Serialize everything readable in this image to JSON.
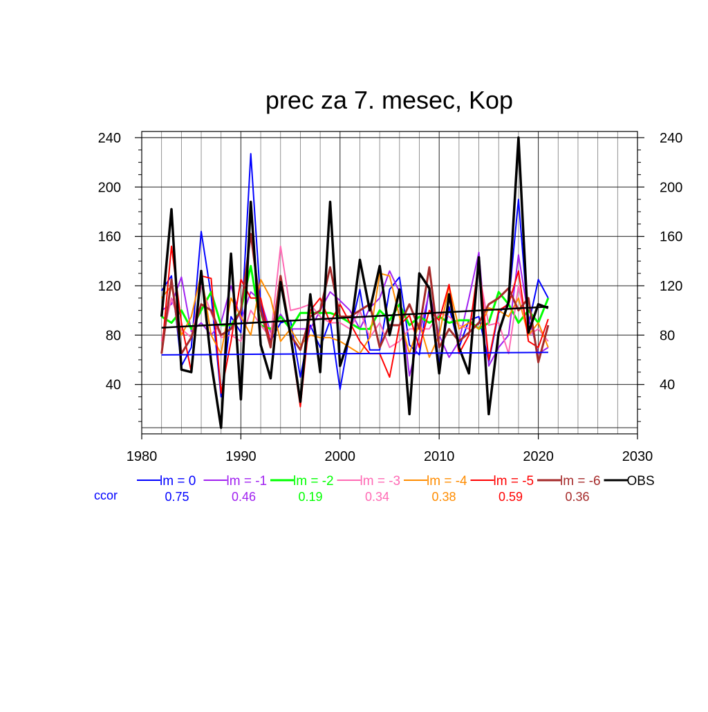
{
  "chart_data": {
    "type": "line",
    "title": "prec za 7. mesec, Kop",
    "xlabel": "",
    "ylabel": "",
    "xlim": [
      1980,
      2030
    ],
    "ylim": [
      0,
      245
    ],
    "x_ticks": [
      "1980",
      "1990",
      "2000",
      "2010",
      "2020",
      "2030"
    ],
    "y_ticks": [
      "40",
      "80",
      "120",
      "160",
      "200",
      "240"
    ],
    "y_ticks_right": [
      "40",
      "80",
      "120",
      "160",
      "200",
      "240"
    ],
    "grid": true,
    "x": [
      1982,
      1983,
      1984,
      1985,
      1986,
      1987,
      1988,
      1989,
      1990,
      1991,
      1992,
      1993,
      1994,
      1995,
      1996,
      1997,
      1998,
      1999,
      2000,
      2001,
      2002,
      2003,
      2004,
      2005,
      2006,
      2007,
      2008,
      2009,
      2010,
      2011,
      2012,
      2013,
      2014,
      2015,
      2016,
      2017,
      2018,
      2019,
      2020,
      2021
    ],
    "ccor_label": "ccor",
    "series": [
      {
        "name": "lm = 0",
        "color": "#0000ff",
        "ccor": "0.75",
        "width": 2,
        "values": [
          116,
          128,
          55,
          70,
          164,
          112,
          30,
          95,
          82,
          227,
          105,
          75,
          90,
          92,
          46,
          88,
          70,
          92,
          36,
          82,
          117,
          68,
          68,
          117,
          127,
          72,
          64,
          118,
          56,
          103,
          70,
          92,
          95,
          58,
          98,
          106,
          190,
          88,
          125,
          110
        ],
        "trend": [
          64,
          66
        ]
      },
      {
        "name": "lm = -1",
        "color": "#a020f0",
        "ccor": "0.46",
        "width": 2,
        "values": [
          100,
          105,
          127,
          83,
          90,
          80,
          90,
          120,
          92,
          115,
          108,
          82,
          97,
          85,
          85,
          85,
          100,
          115,
          108,
          100,
          85,
          102,
          110,
          132,
          115,
          47,
          80,
          115,
          80,
          62,
          75,
          110,
          147,
          55,
          70,
          80,
          145,
          95,
          65,
          70
        ]
      },
      {
        "name": "lm = -2",
        "color": "#00ff00",
        "ccor": "0.19",
        "width": 3,
        "values": [
          95,
          90,
          100,
          85,
          100,
          115,
          88,
          88,
          100,
          136,
          88,
          85,
          95,
          85,
          98,
          98,
          98,
          98,
          95,
          90,
          85,
          85,
          100,
          92,
          105,
          88,
          95,
          90,
          95,
          90,
          92,
          92,
          85,
          90,
          115,
          105,
          90,
          100,
          90,
          110
        ]
      },
      {
        "name": "lm = -3",
        "color": "#ff69b4",
        "ccor": "0.34",
        "width": 2,
        "values": [
          75,
          110,
          85,
          78,
          120,
          98,
          78,
          80,
          75,
          100,
          88,
          78,
          152,
          100,
          102,
          105,
          95,
          90,
          90,
          85,
          100,
          78,
          90,
          70,
          75,
          85,
          85,
          85,
          98,
          95,
          88,
          85,
          132,
          88,
          90,
          65,
          120,
          80,
          85,
          75
        ]
      },
      {
        "name": "lm = -4",
        "color": "#ff8c00",
        "ccor": "0.38",
        "width": 2,
        "values": [
          110,
          120,
          80,
          95,
          130,
          80,
          65,
          110,
          95,
          80,
          125,
          110,
          75,
          85,
          72,
          80,
          78,
          78,
          75,
          70,
          65,
          78,
          130,
          128,
          95,
          65,
          90,
          62,
          80,
          120,
          85,
          90,
          85,
          102,
          100,
          95,
          110,
          80,
          90,
          70
        ]
      },
      {
        "name": "lm = -5",
        "color": "#ff0000",
        "ccor": "0.59",
        "width": 2,
        "values": [
          65,
          152,
          90,
          50,
          128,
          126,
          33,
          75,
          125,
          110,
          110,
          72,
          128,
          78,
          22,
          100,
          110,
          90,
          105,
          90,
          75,
          65,
          65,
          46,
          88,
          96,
          70,
          100,
          92,
          121,
          65,
          80,
          140,
          60,
          100,
          105,
          132,
          75,
          70,
          93
        ]
      },
      {
        "name": "lm = -6",
        "color": "#a52a2a",
        "ccor": "0.36",
        "width": 3,
        "values": [
          65,
          125,
          65,
          78,
          105,
          100,
          80,
          85,
          100,
          162,
          100,
          70,
          128,
          80,
          68,
          95,
          100,
          135,
          95,
          95,
          100,
          105,
          70,
          88,
          88,
          105,
          85,
          135,
          70,
          85,
          75,
          82,
          90,
          105,
          110,
          118,
          100,
          110,
          58,
          88
        ]
      },
      {
        "name": "OBS",
        "color": "#000000",
        "ccor": "",
        "width": 3.5,
        "values": [
          95,
          182,
          52,
          50,
          132,
          58,
          5,
          146,
          28,
          188,
          72,
          45,
          123,
          80,
          26,
          113,
          50,
          188,
          55,
          80,
          141,
          100,
          136,
          80,
          117,
          16,
          130,
          118,
          49,
          113,
          70,
          49,
          143,
          16,
          82,
          107,
          240,
          82,
          105,
          102
        ],
        "trend": [
          86,
          103
        ]
      }
    ]
  }
}
